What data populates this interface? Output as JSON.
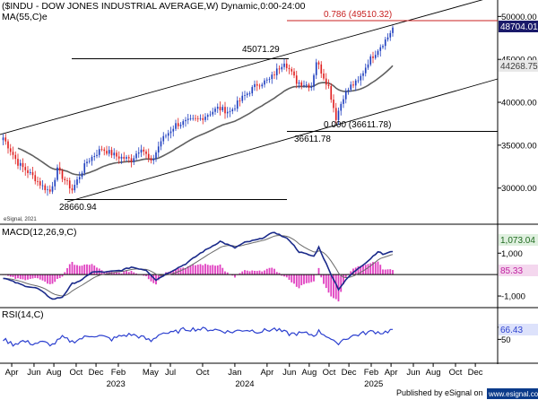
{
  "header": {
    "title": "($INDU - DOW JONES INDUSTRIAL AVERAGE,W) Dynamic,0:00-24:00",
    "ma_label": "MA(55,C)e",
    "watermark": "eSignal, 2021"
  },
  "colors": {
    "up": "#1f3fbf",
    "down": "#e02020",
    "ma": "#606060",
    "fib": "#c82020",
    "macd": "#1a2a8a",
    "signal": "#6a6a6a",
    "hist": "#e040c0",
    "rsi": "#2b3fcf",
    "badge_price": "#1a1a6a",
    "badge_ma": "#606060",
    "badge_macd": "#1f8a1f",
    "badge_hist": "#e040c0",
    "badge_rsi": "#2b3fcf"
  },
  "footer": {
    "text": "Published by eSignal on",
    "logo": "www.esignal.com"
  },
  "chart_data": [
    {
      "type": "candlestick",
      "ylim": [
        26000,
        51500
      ],
      "y_ticks": [
        "50000.00",
        "45000.00",
        "40000.00",
        "35000.00",
        "30000.00"
      ],
      "y_tick_values": [
        50000,
        45000,
        40000,
        35000,
        30000
      ],
      "anchors": [
        [
          0,
          35900
        ],
        [
          6,
          32900
        ],
        [
          12,
          31400
        ],
        [
          16,
          30200
        ],
        [
          19,
          29600
        ],
        [
          22,
          32100
        ],
        [
          28,
          29800
        ],
        [
          34,
          33100
        ],
        [
          40,
          34600
        ],
        [
          46,
          33700
        ],
        [
          52,
          33300
        ],
        [
          56,
          34800
        ],
        [
          60,
          32900
        ],
        [
          64,
          35500
        ],
        [
          70,
          37400
        ],
        [
          80,
          38100
        ],
        [
          87,
          39300
        ],
        [
          92,
          38900
        ],
        [
          97,
          40500
        ],
        [
          103,
          42100
        ],
        [
          108,
          42600
        ],
        [
          114,
          44800
        ],
        [
          119,
          42400
        ],
        [
          125,
          41900
        ],
        [
          127,
          44800
        ],
        [
          132,
          41800
        ],
        [
          135,
          38200
        ],
        [
          138,
          40700
        ],
        [
          141,
          41900
        ],
        [
          144,
          42400
        ],
        [
          148,
          44700
        ],
        [
          152,
          46200
        ],
        [
          156,
          47600
        ],
        [
          158,
          48704
        ]
      ],
      "candle_count": 159,
      "current_price": 48704.01,
      "current_price_label": "48704.01",
      "ma_value": 44268.75,
      "ma_label": "44268.75",
      "annotations": {
        "fib_top": {
          "label": "0.786 (49510.32)",
          "value": 49510.32
        },
        "fib_bottom": {
          "label": "0.000 (36611.78)",
          "value": 36611.78
        },
        "high_label": "45071.29",
        "high_value": 45071.29,
        "low_label": "36611.78",
        "low_value": 36611.78,
        "bottom_label": "28660.94",
        "bottom_value": 28660.94
      }
    },
    {
      "type": "line",
      "name": "MACD(12,26,9,C)",
      "ylim": [
        -1500,
        2100
      ],
      "y_ticks": [
        "1,000",
        "-1,000"
      ],
      "y_tick_values": [
        1000,
        -1000
      ],
      "macd_anchors": [
        [
          0,
          -150
        ],
        [
          8,
          -500
        ],
        [
          14,
          -650
        ],
        [
          20,
          -1150
        ],
        [
          24,
          -1050
        ],
        [
          28,
          -420
        ],
        [
          32,
          -250
        ],
        [
          36,
          120
        ],
        [
          42,
          120
        ],
        [
          48,
          200
        ],
        [
          52,
          350
        ],
        [
          58,
          210
        ],
        [
          62,
          -250
        ],
        [
          66,
          30
        ],
        [
          74,
          500
        ],
        [
          80,
          1000
        ],
        [
          88,
          1550
        ],
        [
          94,
          1250
        ],
        [
          98,
          1500
        ],
        [
          104,
          1650
        ],
        [
          110,
          1980
        ],
        [
          116,
          1620
        ],
        [
          120,
          1060
        ],
        [
          126,
          850
        ],
        [
          128,
          1280
        ],
        [
          132,
          250
        ],
        [
          136,
          -680
        ],
        [
          140,
          -120
        ],
        [
          144,
          300
        ],
        [
          148,
          640
        ],
        [
          152,
          1080
        ],
        [
          154,
          950
        ],
        [
          158,
          1073
        ]
      ],
      "macd_value": 1073.04,
      "macd_label": "1,073.04",
      "hist_value": 85.33,
      "hist_label": "85.33"
    },
    {
      "type": "line",
      "name": "RSI(14,C)",
      "ylim": [
        15,
        95
      ],
      "y_ticks": [
        "70",
        "50"
      ],
      "y_tick_values": [
        70,
        50
      ],
      "anchors": [
        [
          0,
          50
        ],
        [
          4,
          42
        ],
        [
          8,
          47
        ],
        [
          12,
          43
        ],
        [
          16,
          45
        ],
        [
          20,
          41
        ],
        [
          24,
          53
        ],
        [
          28,
          46
        ],
        [
          32,
          52
        ],
        [
          36,
          57
        ],
        [
          40,
          55
        ],
        [
          44,
          50
        ],
        [
          48,
          56
        ],
        [
          52,
          58
        ],
        [
          56,
          54
        ],
        [
          60,
          47
        ],
        [
          64,
          61
        ],
        [
          68,
          60
        ],
        [
          74,
          67
        ],
        [
          80,
          67
        ],
        [
          86,
          66
        ],
        [
          92,
          62
        ],
        [
          98,
          66
        ],
        [
          104,
          63
        ],
        [
          110,
          67
        ],
        [
          116,
          59
        ],
        [
          122,
          60
        ],
        [
          126,
          57
        ],
        [
          128,
          63
        ],
        [
          132,
          54
        ],
        [
          135,
          42
        ],
        [
          138,
          50
        ],
        [
          142,
          56
        ],
        [
          146,
          60
        ],
        [
          150,
          63
        ],
        [
          154,
          61
        ],
        [
          158,
          66
        ]
      ],
      "rsi_value": 66.43,
      "rsi_label": "66.43"
    },
    {
      "type": "axis",
      "x_months": [
        {
          "label": "Apr",
          "week": 4
        },
        {
          "label": "Jun",
          "week": 13
        },
        {
          "label": "Aug",
          "week": 21
        },
        {
          "label": "Oct",
          "week": 30
        },
        {
          "label": "Dec",
          "week": 38
        },
        {
          "label": "Feb",
          "week": 47
        },
        {
          "label": "May",
          "week": 60
        },
        {
          "label": "Jul",
          "week": 68
        },
        {
          "label": "Oct",
          "week": 81
        },
        {
          "label": "Jan",
          "week": 94
        },
        {
          "label": "Apr",
          "week": 107
        },
        {
          "label": "Jun",
          "week": 116
        },
        {
          "label": "Aug",
          "week": 124
        },
        {
          "label": "Oct",
          "week": 132
        },
        {
          "label": "Dec",
          "week": 140
        },
        {
          "label": "Feb",
          "week": 149
        },
        {
          "label": "Apr",
          "week": 157
        },
        {
          "label": "Jun",
          "week": 166
        },
        {
          "label": "Aug",
          "week": 174
        },
        {
          "label": "Oct",
          "week": 183
        },
        {
          "label": "Dec",
          "week": 191
        }
      ],
      "x_years": [
        {
          "label": "2023",
          "week": 46
        },
        {
          "label": "2024",
          "week": 98
        },
        {
          "label": "2025",
          "week": 150
        }
      ]
    }
  ]
}
